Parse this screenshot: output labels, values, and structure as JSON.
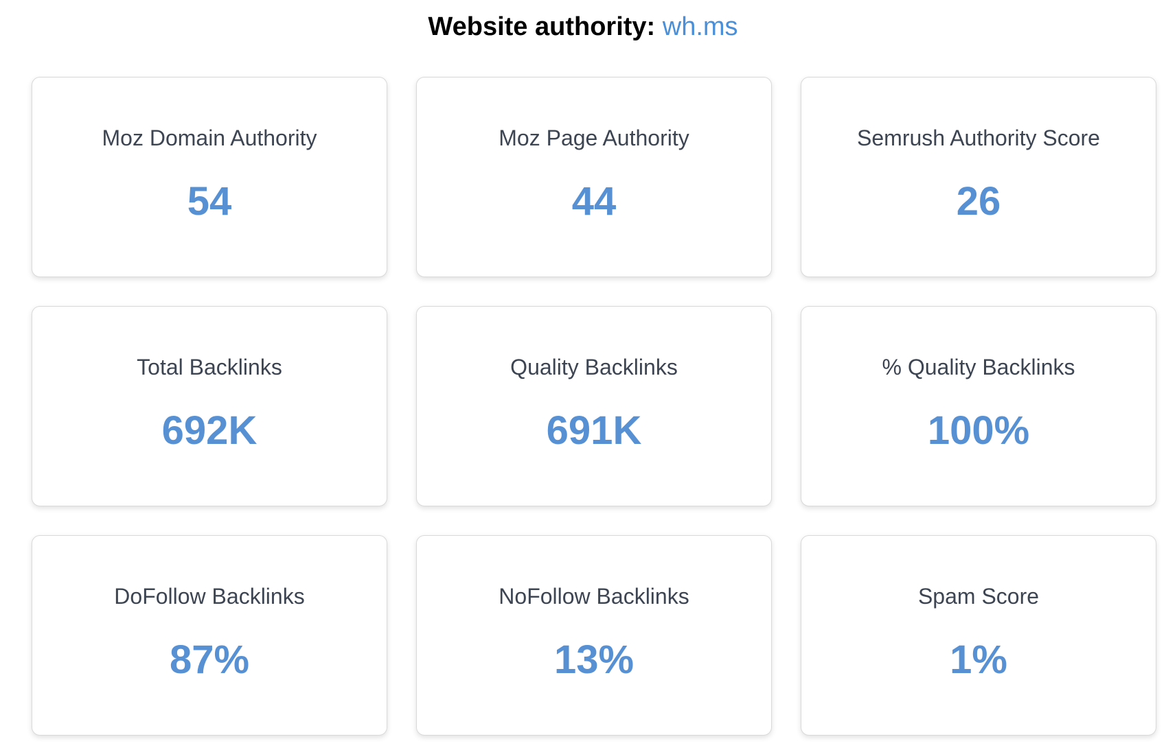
{
  "header": {
    "label": "Website authority:",
    "domain": "wh.ms"
  },
  "colors": {
    "accent": "#5791d3",
    "title_text": "#3d4452",
    "link": "#4a8fd8"
  },
  "metrics": [
    {
      "title": "Moz Domain Authority",
      "value": "54"
    },
    {
      "title": "Moz Page Authority",
      "value": "44"
    },
    {
      "title": "Semrush Authority Score",
      "value": "26"
    },
    {
      "title": "Total Backlinks",
      "value": "692K"
    },
    {
      "title": "Quality Backlinks",
      "value": "691K"
    },
    {
      "title": "% Quality Backlinks",
      "value": "100%"
    },
    {
      "title": "DoFollow Backlinks",
      "value": "87%"
    },
    {
      "title": "NoFollow Backlinks",
      "value": "13%"
    },
    {
      "title": "Spam Score",
      "value": "1%"
    }
  ]
}
